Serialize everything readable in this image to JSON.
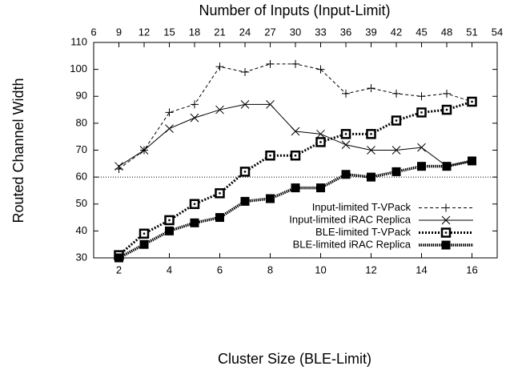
{
  "chart_data": {
    "type": "line",
    "xlabel": "Cluster Size (BLE-Limit)",
    "x2label": "Number of Inputs (Input-Limit)",
    "ylabel": "Routed Channel Width",
    "x": [
      2,
      3,
      4,
      5,
      6,
      7,
      8,
      9,
      10,
      11,
      12,
      13,
      14,
      15,
      16
    ],
    "xlim": [
      1,
      17
    ],
    "xticks": [
      2,
      4,
      6,
      8,
      10,
      12,
      14,
      16
    ],
    "x2lim": [
      6,
      54
    ],
    "x2ticks": [
      6,
      9,
      12,
      15,
      18,
      21,
      24,
      27,
      30,
      33,
      36,
      39,
      42,
      45,
      48,
      51,
      54
    ],
    "ylim": [
      30,
      110
    ],
    "yticks": [
      30,
      40,
      50,
      60,
      70,
      80,
      90,
      100,
      110
    ],
    "hline": 60,
    "legend": "bottom-right",
    "series": [
      {
        "name": "Input-limited T-VPack",
        "color": "#000000",
        "dash": "dashed",
        "marker": "plus",
        "values": [
          63,
          70,
          84,
          87,
          101,
          99,
          102,
          102,
          100,
          91,
          93,
          91,
          90,
          91,
          88
        ]
      },
      {
        "name": "Input-limited iRAC Replica",
        "color": "#000000",
        "dash": "solid",
        "marker": "cross",
        "values": [
          64,
          70,
          78,
          82,
          85,
          87,
          87,
          77,
          76,
          72,
          70,
          70,
          71,
          64,
          66
        ]
      },
      {
        "name": "BLE-limited T-VPack",
        "color": "#000000",
        "dash": "dotted",
        "marker": "dotted-square",
        "values": [
          31,
          39,
          44,
          50,
          54,
          62,
          68,
          68,
          73,
          76,
          76,
          81,
          84,
          85,
          88
        ]
      },
      {
        "name": "BLE-limited iRAC Replica",
        "color": "#000000",
        "dash": "dense-dotted",
        "marker": "filled-square",
        "values": [
          30,
          35,
          40,
          43,
          45,
          51,
          52,
          56,
          56,
          61,
          60,
          62,
          64,
          64,
          66
        ]
      }
    ]
  }
}
